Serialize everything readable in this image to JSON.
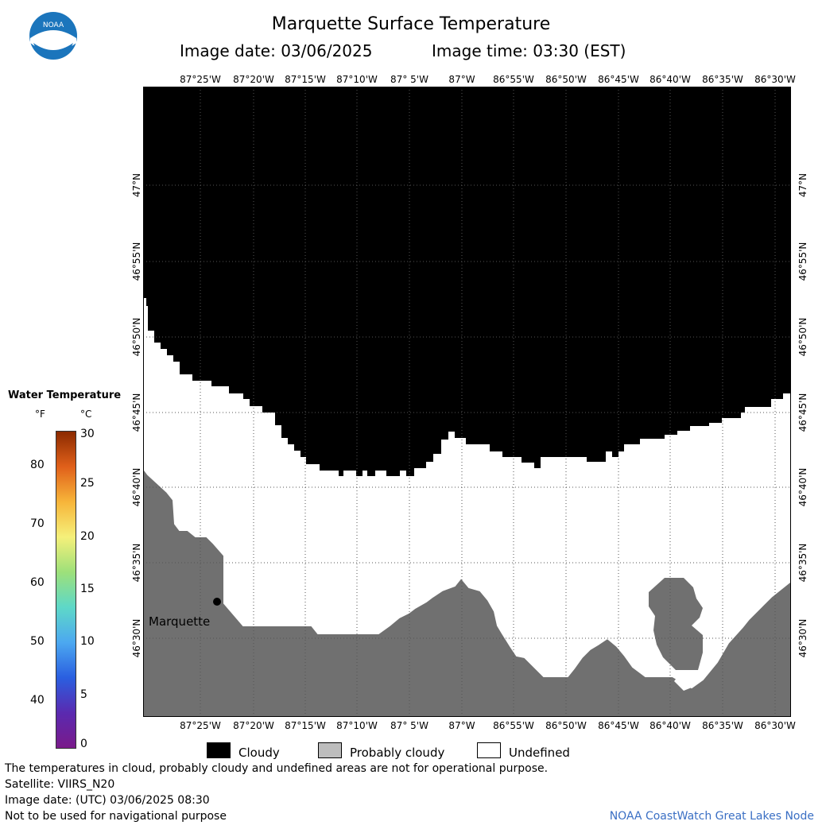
{
  "header": {
    "title": "Marquette Surface Temperature",
    "image_date": "Image date: 03/06/2025",
    "image_time": "Image time: 03:30 (EST)"
  },
  "logo": {
    "icon": "noaa-logo-icon",
    "text": "NOAA"
  },
  "map": {
    "lon_labels": [
      "87°25'W",
      "87°20'W",
      "87°15'W",
      "87°10'W",
      "87° 5'W",
      "87°W",
      "86°55'W",
      "86°50'W",
      "86°45'W",
      "86°40'W",
      "86°35'W",
      "86°30'W"
    ],
    "lat_labels": [
      "47°N",
      "46°55'N",
      "46°50'N",
      "46°45'N",
      "46°40'N",
      "46°35'N",
      "46°30'N"
    ],
    "city_label": "Marquette",
    "colors": {
      "cloudy": "#000000",
      "land": "#707070",
      "undefined": "#ffffff",
      "grid": "#666666"
    }
  },
  "legend": {
    "title": "Water Temperature",
    "unit_f": "°F",
    "unit_c": "°C",
    "f_ticks": [
      "80",
      "70",
      "60",
      "50",
      "40"
    ],
    "c_ticks": [
      "30",
      "25",
      "20",
      "15",
      "10",
      "5",
      "0"
    ],
    "scale_colors": [
      "#8b2a00",
      "#e0601a",
      "#f7b53a",
      "#f5f07a",
      "#9de07a",
      "#5ed8c8",
      "#4ca8f0",
      "#2a5fe0",
      "#5a2ab0",
      "#7a1a8a"
    ]
  },
  "key": {
    "cloudy": "Cloudy",
    "probably_cloudy": "Probably cloudy",
    "undefined": "Undefined"
  },
  "footer": {
    "note": "The temperatures in cloud, probably cloudy and undefined areas are not for operational purpose.",
    "satellite": "Satellite: VIIRS_N20",
    "utc": "Image date: (UTC) 03/06/2025  08:30",
    "nav": "Not to be used for navigational purpose",
    "credit": "NOAA CoastWatch Great Lakes Node"
  }
}
